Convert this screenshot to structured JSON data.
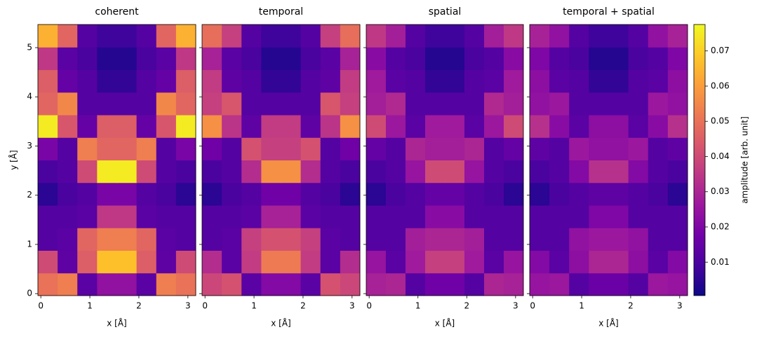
{
  "chart_data": [
    {
      "type": "heatmap",
      "title": "coherent",
      "x_label": "x [Å]",
      "y_label": "y [Å]",
      "xlim": [
        -0.06,
        3.16
      ],
      "ylim": [
        -0.04,
        5.47
      ],
      "xticks": [
        0,
        1,
        2,
        3
      ],
      "yticks": [
        0,
        1,
        2,
        3,
        4,
        5
      ],
      "values": [
        [
          0.05,
          0.053,
          0.013,
          0.024,
          0.024,
          0.013,
          0.053,
          0.05
        ],
        [
          0.04,
          0.014,
          0.045,
          0.067,
          0.067,
          0.045,
          0.014,
          0.04
        ],
        [
          0.012,
          0.013,
          0.047,
          0.053,
          0.053,
          0.047,
          0.013,
          0.012
        ],
        [
          0.012,
          0.012,
          0.013,
          0.035,
          0.035,
          0.013,
          0.012,
          0.012
        ],
        [
          0.005,
          0.01,
          0.012,
          0.019,
          0.019,
          0.012,
          0.01,
          0.005
        ],
        [
          0.01,
          0.012,
          0.04,
          0.075,
          0.075,
          0.04,
          0.012,
          0.01
        ],
        [
          0.019,
          0.012,
          0.053,
          0.047,
          0.047,
          0.053,
          0.012,
          0.019
        ],
        [
          0.075,
          0.043,
          0.015,
          0.045,
          0.045,
          0.015,
          0.043,
          0.075
        ],
        [
          0.047,
          0.055,
          0.012,
          0.012,
          0.012,
          0.012,
          0.055,
          0.047
        ],
        [
          0.045,
          0.015,
          0.012,
          0.006,
          0.006,
          0.012,
          0.015,
          0.045
        ],
        [
          0.035,
          0.013,
          0.01,
          0.004,
          0.004,
          0.01,
          0.013,
          0.035
        ],
        [
          0.064,
          0.047,
          0.012,
          0.008,
          0.008,
          0.012,
          0.047,
          0.064
        ]
      ]
    },
    {
      "type": "heatmap",
      "title": "temporal",
      "x_label": "x [Å]",
      "xlim": [
        -0.06,
        3.16
      ],
      "ylim": [
        -0.04,
        5.47
      ],
      "xticks": [
        0,
        1,
        2,
        3
      ],
      "yticks": [
        0,
        1,
        2,
        3,
        4,
        5
      ],
      "values": [
        [
          0.039,
          0.042,
          0.013,
          0.021,
          0.021,
          0.013,
          0.042,
          0.039
        ],
        [
          0.032,
          0.013,
          0.036,
          0.052,
          0.052,
          0.036,
          0.013,
          0.032
        ],
        [
          0.012,
          0.013,
          0.037,
          0.042,
          0.042,
          0.037,
          0.013,
          0.012
        ],
        [
          0.012,
          0.012,
          0.013,
          0.029,
          0.029,
          0.013,
          0.012,
          0.012
        ],
        [
          0.005,
          0.01,
          0.012,
          0.017,
          0.017,
          0.012,
          0.01,
          0.005
        ],
        [
          0.01,
          0.012,
          0.032,
          0.057,
          0.057,
          0.032,
          0.012,
          0.01
        ],
        [
          0.017,
          0.012,
          0.042,
          0.037,
          0.037,
          0.042,
          0.012,
          0.017
        ],
        [
          0.057,
          0.034,
          0.014,
          0.036,
          0.036,
          0.014,
          0.034,
          0.057
        ],
        [
          0.037,
          0.043,
          0.012,
          0.012,
          0.012,
          0.012,
          0.043,
          0.037
        ],
        [
          0.036,
          0.014,
          0.012,
          0.006,
          0.006,
          0.012,
          0.014,
          0.036
        ],
        [
          0.029,
          0.013,
          0.01,
          0.004,
          0.004,
          0.01,
          0.013,
          0.029
        ],
        [
          0.049,
          0.037,
          0.012,
          0.008,
          0.008,
          0.012,
          0.037,
          0.049
        ]
      ]
    },
    {
      "type": "heatmap",
      "title": "spatial",
      "x_label": "x [Å]",
      "xlim": [
        -0.06,
        3.16
      ],
      "ylim": [
        -0.04,
        5.47
      ],
      "xticks": [
        0,
        1,
        2,
        3
      ],
      "yticks": [
        0,
        1,
        2,
        3,
        4,
        5
      ],
      "values": [
        [
          0.029,
          0.03,
          0.012,
          0.017,
          0.017,
          0.012,
          0.03,
          0.029
        ],
        [
          0.025,
          0.013,
          0.027,
          0.037,
          0.037,
          0.027,
          0.013,
          0.025
        ],
        [
          0.012,
          0.012,
          0.028,
          0.03,
          0.03,
          0.028,
          0.012,
          0.012
        ],
        [
          0.012,
          0.012,
          0.012,
          0.022,
          0.022,
          0.012,
          0.012,
          0.012
        ],
        [
          0.005,
          0.01,
          0.012,
          0.015,
          0.015,
          0.012,
          0.01,
          0.005
        ],
        [
          0.01,
          0.012,
          0.025,
          0.04,
          0.04,
          0.025,
          0.012,
          0.01
        ],
        [
          0.015,
          0.012,
          0.03,
          0.028,
          0.028,
          0.03,
          0.012,
          0.015
        ],
        [
          0.04,
          0.026,
          0.013,
          0.027,
          0.027,
          0.013,
          0.026,
          0.04
        ],
        [
          0.028,
          0.031,
          0.012,
          0.012,
          0.012,
          0.012,
          0.031,
          0.028
        ],
        [
          0.027,
          0.013,
          0.012,
          0.006,
          0.006,
          0.012,
          0.013,
          0.027
        ],
        [
          0.022,
          0.012,
          0.01,
          0.004,
          0.004,
          0.01,
          0.012,
          0.022
        ],
        [
          0.035,
          0.028,
          0.012,
          0.008,
          0.008,
          0.012,
          0.028,
          0.035
        ]
      ]
    },
    {
      "type": "heatmap",
      "title": "temporal + spatial",
      "x_label": "x [Å]",
      "xlim": [
        -0.06,
        3.16
      ],
      "ylim": [
        -0.04,
        5.47
      ],
      "xticks": [
        0,
        1,
        2,
        3
      ],
      "yticks": [
        0,
        1,
        2,
        3,
        4,
        5
      ],
      "values": [
        [
          0.025,
          0.026,
          0.012,
          0.016,
          0.016,
          0.012,
          0.026,
          0.025
        ],
        [
          0.021,
          0.013,
          0.023,
          0.03,
          0.03,
          0.023,
          0.013,
          0.021
        ],
        [
          0.012,
          0.012,
          0.024,
          0.026,
          0.026,
          0.024,
          0.012,
          0.012
        ],
        [
          0.012,
          0.012,
          0.012,
          0.02,
          0.02,
          0.012,
          0.012,
          0.012
        ],
        [
          0.005,
          0.01,
          0.012,
          0.014,
          0.014,
          0.012,
          0.01,
          0.005
        ],
        [
          0.01,
          0.012,
          0.021,
          0.033,
          0.033,
          0.021,
          0.012,
          0.01
        ],
        [
          0.014,
          0.012,
          0.026,
          0.024,
          0.024,
          0.026,
          0.012,
          0.014
        ],
        [
          0.033,
          0.022,
          0.013,
          0.023,
          0.023,
          0.013,
          0.022,
          0.033
        ],
        [
          0.024,
          0.026,
          0.012,
          0.012,
          0.012,
          0.012,
          0.026,
          0.024
        ],
        [
          0.023,
          0.013,
          0.012,
          0.006,
          0.006,
          0.012,
          0.013,
          0.023
        ],
        [
          0.02,
          0.012,
          0.01,
          0.004,
          0.004,
          0.01,
          0.012,
          0.02
        ],
        [
          0.029,
          0.024,
          0.012,
          0.008,
          0.008,
          0.012,
          0.024,
          0.029
        ]
      ]
    }
  ],
  "colorbar": {
    "label": "amplitude [arb. unit]",
    "lim": [
      0.0005,
      0.0775
    ],
    "ticks": [
      0.01,
      0.02,
      0.03,
      0.04,
      0.05,
      0.06,
      0.07
    ],
    "colormap": [
      "#0d0887",
      "#46039f",
      "#7201a8",
      "#9c179e",
      "#bd3786",
      "#d8576b",
      "#ed7953",
      "#fb9f3a",
      "#fdca26",
      "#f0f921"
    ]
  }
}
